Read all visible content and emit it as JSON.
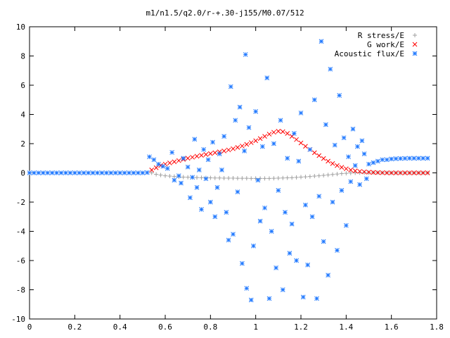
{
  "chart_data": {
    "type": "scatter",
    "title": "m1/n1.5/q2.0/r-+.30-j155/M0.07/512",
    "xlabel": "",
    "ylabel": "",
    "xlim": [
      0,
      1.8
    ],
    "ylim": [
      -10,
      10
    ],
    "x_ticks": [
      "0",
      "0.2",
      "0.4",
      "0.6",
      "0.8",
      "1",
      "1.2",
      "1.4",
      "1.6",
      "1.8"
    ],
    "y_ticks": [
      "10",
      "8",
      "6",
      "4",
      "2",
      "0",
      "-2",
      "-4",
      "-6",
      "-8",
      "-10"
    ],
    "grid": false,
    "legend_position": "top-right",
    "series": [
      {
        "name": "R stress/E",
        "color": "#a0a0a0",
        "marker": "plus",
        "points": [
          [
            0.54,
            0.0
          ],
          [
            0.56,
            -0.1
          ],
          [
            0.58,
            -0.15
          ],
          [
            0.6,
            -0.2
          ],
          [
            0.62,
            -0.22
          ],
          [
            0.64,
            -0.25
          ],
          [
            0.66,
            -0.27
          ],
          [
            0.68,
            -0.29
          ],
          [
            0.7,
            -0.3
          ],
          [
            0.72,
            -0.31
          ],
          [
            0.74,
            -0.32
          ],
          [
            0.76,
            -0.33
          ],
          [
            0.78,
            -0.34
          ],
          [
            0.8,
            -0.34
          ],
          [
            0.82,
            -0.35
          ],
          [
            0.84,
            -0.35
          ],
          [
            0.86,
            -0.36
          ],
          [
            0.88,
            -0.36
          ],
          [
            0.9,
            -0.36
          ],
          [
            0.92,
            -0.37
          ],
          [
            0.94,
            -0.37
          ],
          [
            0.96,
            -0.37
          ],
          [
            0.98,
            -0.38
          ],
          [
            1.0,
            -0.38
          ],
          [
            1.02,
            -0.38
          ],
          [
            1.04,
            -0.38
          ],
          [
            1.06,
            -0.38
          ],
          [
            1.08,
            -0.37
          ],
          [
            1.1,
            -0.36
          ],
          [
            1.12,
            -0.35
          ],
          [
            1.14,
            -0.34
          ],
          [
            1.16,
            -0.33
          ],
          [
            1.18,
            -0.31
          ],
          [
            1.2,
            -0.29
          ],
          [
            1.22,
            -0.27
          ],
          [
            1.24,
            -0.25
          ],
          [
            1.26,
            -0.22
          ],
          [
            1.28,
            -0.2
          ],
          [
            1.3,
            -0.17
          ],
          [
            1.32,
            -0.14
          ],
          [
            1.34,
            -0.11
          ],
          [
            1.36,
            -0.08
          ],
          [
            1.38,
            -0.05
          ],
          [
            1.4,
            -0.03
          ],
          [
            1.42,
            -0.01
          ],
          [
            1.44,
            0.0
          ],
          [
            1.46,
            0.01
          ],
          [
            1.48,
            0.02
          ],
          [
            1.5,
            0.02
          ],
          [
            1.52,
            0.02
          ],
          [
            1.54,
            0.02
          ],
          [
            1.56,
            0.01
          ],
          [
            1.58,
            0.01
          ],
          [
            1.6,
            0.0
          ],
          [
            1.62,
            0.0
          ],
          [
            1.64,
            0.0
          ],
          [
            1.66,
            0.0
          ],
          [
            1.68,
            0.0
          ],
          [
            1.7,
            0.0
          ],
          [
            1.72,
            0.0
          ],
          [
            1.74,
            0.0
          ],
          [
            1.76,
            0.0
          ]
        ]
      },
      {
        "name": "G work/E",
        "color": "#ff0000",
        "marker": "cross",
        "points": [
          [
            0.54,
            0.2
          ],
          [
            0.56,
            0.35
          ],
          [
            0.58,
            0.5
          ],
          [
            0.6,
            0.6
          ],
          [
            0.62,
            0.68
          ],
          [
            0.64,
            0.76
          ],
          [
            0.66,
            0.84
          ],
          [
            0.68,
            0.92
          ],
          [
            0.7,
            1.0
          ],
          [
            0.72,
            1.07
          ],
          [
            0.74,
            1.14
          ],
          [
            0.76,
            1.2
          ],
          [
            0.78,
            1.26
          ],
          [
            0.8,
            1.32
          ],
          [
            0.82,
            1.38
          ],
          [
            0.84,
            1.44
          ],
          [
            0.86,
            1.5
          ],
          [
            0.88,
            1.57
          ],
          [
            0.9,
            1.65
          ],
          [
            0.92,
            1.74
          ],
          [
            0.94,
            1.84
          ],
          [
            0.96,
            1.95
          ],
          [
            0.98,
            2.07
          ],
          [
            1.0,
            2.2
          ],
          [
            1.02,
            2.35
          ],
          [
            1.04,
            2.5
          ],
          [
            1.06,
            2.65
          ],
          [
            1.08,
            2.78
          ],
          [
            1.1,
            2.85
          ],
          [
            1.12,
            2.82
          ],
          [
            1.14,
            2.7
          ],
          [
            1.16,
            2.5
          ],
          [
            1.18,
            2.28
          ],
          [
            1.2,
            2.05
          ],
          [
            1.22,
            1.82
          ],
          [
            1.24,
            1.6
          ],
          [
            1.26,
            1.38
          ],
          [
            1.28,
            1.18
          ],
          [
            1.3,
            0.98
          ],
          [
            1.32,
            0.8
          ],
          [
            1.34,
            0.64
          ],
          [
            1.36,
            0.5
          ],
          [
            1.38,
            0.38
          ],
          [
            1.4,
            0.28
          ],
          [
            1.42,
            0.2
          ],
          [
            1.44,
            0.14
          ],
          [
            1.46,
            0.1
          ],
          [
            1.48,
            0.07
          ],
          [
            1.5,
            0.05
          ],
          [
            1.52,
            0.03
          ],
          [
            1.54,
            0.02
          ],
          [
            1.56,
            0.01
          ],
          [
            1.58,
            0.0
          ],
          [
            1.6,
            0.0
          ],
          [
            1.62,
            0.0
          ],
          [
            1.64,
            0.0
          ],
          [
            1.66,
            0.0
          ],
          [
            1.68,
            0.0
          ],
          [
            1.7,
            0.0
          ],
          [
            1.72,
            0.0
          ],
          [
            1.74,
            0.0
          ],
          [
            1.76,
            0.0
          ]
        ]
      },
      {
        "name": "Acoustic flux/E",
        "color": "#1f78ff",
        "marker": "star",
        "points": [
          [
            0.0,
            0.0
          ],
          [
            0.02,
            0.0
          ],
          [
            0.04,
            0.0
          ],
          [
            0.06,
            0.0
          ],
          [
            0.08,
            0.0
          ],
          [
            0.1,
            0.0
          ],
          [
            0.12,
            0.0
          ],
          [
            0.14,
            0.0
          ],
          [
            0.16,
            0.0
          ],
          [
            0.18,
            0.0
          ],
          [
            0.2,
            0.0
          ],
          [
            0.22,
            0.0
          ],
          [
            0.24,
            0.0
          ],
          [
            0.26,
            0.0
          ],
          [
            0.28,
            0.0
          ],
          [
            0.3,
            0.0
          ],
          [
            0.32,
            0.0
          ],
          [
            0.34,
            0.0
          ],
          [
            0.36,
            0.0
          ],
          [
            0.38,
            0.0
          ],
          [
            0.4,
            0.0
          ],
          [
            0.42,
            0.0
          ],
          [
            0.44,
            0.0
          ],
          [
            0.46,
            0.0
          ],
          [
            0.48,
            0.0
          ],
          [
            0.5,
            0.0
          ],
          [
            0.52,
            0.02
          ],
          [
            0.53,
            1.1
          ],
          [
            0.55,
            0.9
          ],
          [
            0.57,
            0.6
          ],
          [
            0.59,
            0.45
          ],
          [
            0.61,
            0.3
          ],
          [
            0.63,
            1.4
          ],
          [
            0.64,
            -0.5
          ],
          [
            0.66,
            -0.2
          ],
          [
            0.67,
            -0.7
          ],
          [
            0.68,
            1.0
          ],
          [
            0.7,
            0.4
          ],
          [
            0.71,
            -1.7
          ],
          [
            0.72,
            -0.3
          ],
          [
            0.73,
            2.3
          ],
          [
            0.74,
            -1.0
          ],
          [
            0.75,
            0.2
          ],
          [
            0.76,
            -2.5
          ],
          [
            0.77,
            1.6
          ],
          [
            0.78,
            -0.4
          ],
          [
            0.79,
            0.9
          ],
          [
            0.8,
            -2.0
          ],
          [
            0.81,
            2.1
          ],
          [
            0.82,
            -3.0
          ],
          [
            0.83,
            -1.0
          ],
          [
            0.84,
            1.3
          ],
          [
            0.85,
            0.2
          ],
          [
            0.86,
            2.5
          ],
          [
            0.87,
            -2.7
          ],
          [
            0.88,
            -4.6
          ],
          [
            0.89,
            5.9
          ],
          [
            0.9,
            -4.2
          ],
          [
            0.91,
            3.6
          ],
          [
            0.92,
            -1.3
          ],
          [
            0.93,
            4.5
          ],
          [
            0.94,
            -6.2
          ],
          [
            0.95,
            1.5
          ],
          [
            0.955,
            8.1
          ],
          [
            0.96,
            -7.9
          ],
          [
            0.97,
            3.1
          ],
          [
            0.98,
            -8.7
          ],
          [
            0.99,
            -5.0
          ],
          [
            1.0,
            4.2
          ],
          [
            1.01,
            -0.5
          ],
          [
            1.02,
            -3.3
          ],
          [
            1.03,
            1.8
          ],
          [
            1.04,
            -2.4
          ],
          [
            1.05,
            6.5
          ],
          [
            1.06,
            -8.6
          ],
          [
            1.07,
            -4.0
          ],
          [
            1.08,
            2.0
          ],
          [
            1.09,
            -6.5
          ],
          [
            1.1,
            -1.2
          ],
          [
            1.11,
            3.6
          ],
          [
            1.12,
            -8.0
          ],
          [
            1.13,
            -2.7
          ],
          [
            1.14,
            1.0
          ],
          [
            1.15,
            -5.5
          ],
          [
            1.16,
            -3.5
          ],
          [
            1.17,
            2.7
          ],
          [
            1.18,
            -6.0
          ],
          [
            1.19,
            0.8
          ],
          [
            1.2,
            4.1
          ],
          [
            1.21,
            -8.5
          ],
          [
            1.22,
            -2.2
          ],
          [
            1.23,
            -6.3
          ],
          [
            1.24,
            1.6
          ],
          [
            1.25,
            -3.0
          ],
          [
            1.26,
            5.0
          ],
          [
            1.27,
            -8.6
          ],
          [
            1.28,
            -1.6
          ],
          [
            1.29,
            9.0
          ],
          [
            1.3,
            -4.7
          ],
          [
            1.31,
            3.3
          ],
          [
            1.32,
            -7.0
          ],
          [
            1.33,
            7.1
          ],
          [
            1.34,
            -2.0
          ],
          [
            1.35,
            1.9
          ],
          [
            1.36,
            -5.3
          ],
          [
            1.37,
            5.3
          ],
          [
            1.38,
            -1.2
          ],
          [
            1.39,
            2.4
          ],
          [
            1.4,
            -3.6
          ],
          [
            1.41,
            1.1
          ],
          [
            1.42,
            -0.6
          ],
          [
            1.43,
            3.0
          ],
          [
            1.44,
            0.5
          ],
          [
            1.45,
            1.8
          ],
          [
            1.46,
            -0.8
          ],
          [
            1.47,
            2.2
          ],
          [
            1.48,
            1.3
          ],
          [
            1.49,
            -0.4
          ],
          [
            1.5,
            0.6
          ],
          [
            1.52,
            0.7
          ],
          [
            1.54,
            0.8
          ],
          [
            1.56,
            0.9
          ],
          [
            1.58,
            0.9
          ],
          [
            1.6,
            0.95
          ],
          [
            1.62,
            0.97
          ],
          [
            1.64,
            0.98
          ],
          [
            1.66,
            0.99
          ],
          [
            1.68,
            1.0
          ],
          [
            1.7,
            1.0
          ],
          [
            1.72,
            1.0
          ],
          [
            1.74,
            1.0
          ],
          [
            1.76,
            1.0
          ]
        ]
      }
    ]
  }
}
